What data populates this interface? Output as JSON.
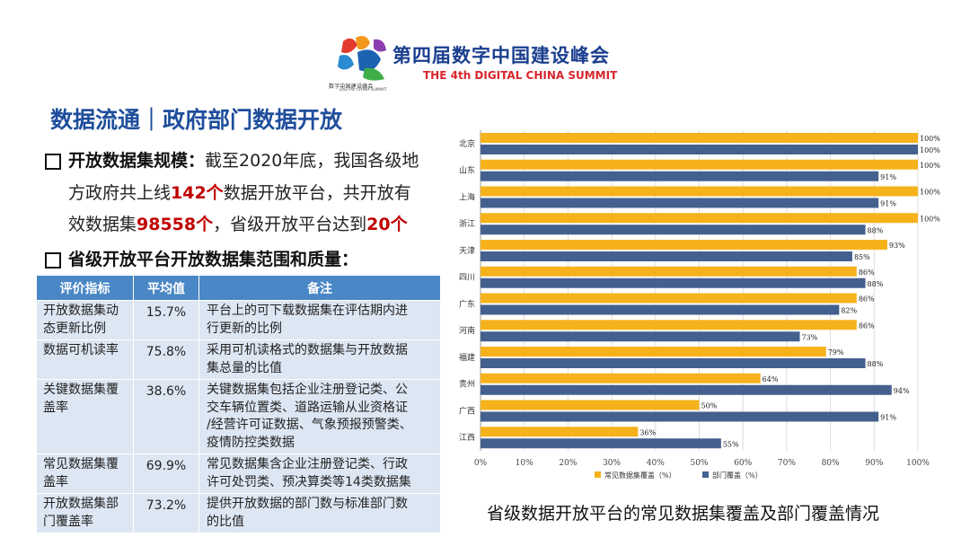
{
  "header": {
    "logo_char": "数",
    "logo_sub_cn": "数字中国建设峰会",
    "logo_sub_en": "DIGITAL CHINA SUMMIT",
    "summit_cn": "第四届数字中国建设峰会",
    "summit_en": "THE 4th DIGITAL CHINA SUMMIT"
  },
  "title": "数据流通｜政府部门数据开放",
  "para1": {
    "label": "开放数据集规模：",
    "t1": "截至2020年底，我国各级地",
    "t2": "方政府共上线",
    "h1": "142个",
    "t3": "数据开放平台，共开放有",
    "t4": "效数据集",
    "h2": "98558个",
    "t5": "，省级开放平台达到",
    "h3": "20个"
  },
  "heading2": "省级开放平台开放数据集范围和质量：",
  "table": {
    "headers": [
      "评价指标",
      "平均值",
      "备注"
    ],
    "rows": [
      {
        "name1": "开放数据集动",
        "name2": "态更新比例",
        "value": "15.7%",
        "note1": "平台上的可下载数据集在评估期内进",
        "note2": "行更新的比例"
      },
      {
        "name1": "数据可机读率",
        "name2": "",
        "value": "75.8%",
        "note1": "采用可机读格式的数据集与开放数据",
        "note2": "集总量的比值"
      },
      {
        "name1": "关键数据集覆",
        "name2": "盖率",
        "value": "38.6%",
        "note1": "关键数据集包括企业注册登记类、公",
        "note2": "交车辆位置类、道路运输从业资格证",
        "note3": "/经营许可证数据、气象预报预警类、",
        "note4": "疫情防控类数据"
      },
      {
        "name1": "常见数据集覆",
        "name2": "盖率",
        "value": "69.9%",
        "note1": "常见数据集含企业注册登记类、行政",
        "note2": "许可处罚类、预决算类等14类数据集"
      },
      {
        "name1": "开放数据集部",
        "name2": "门覆盖率",
        "value": "73.2%",
        "note1": "提供开放数据的部门数与标准部门数",
        "note2": "的比值"
      }
    ]
  },
  "chart_caption": "省级数据开放平台的常见数据集覆盖及部门覆盖情况",
  "chart_data": {
    "type": "bar",
    "orientation": "horizontal",
    "categories": [
      "北京",
      "山东",
      "上海",
      "浙江",
      "天津",
      "四川",
      "广东",
      "河南",
      "福建",
      "贵州",
      "广西",
      "江西"
    ],
    "series": [
      {
        "name": "常见数据集覆盖（%）",
        "color": "#f5b21b",
        "values": [
          100,
          100,
          100,
          100,
          93,
          86,
          86,
          86,
          79,
          64,
          50,
          36
        ]
      },
      {
        "name": "部门覆盖（%）",
        "color": "#44608e",
        "values": [
          100,
          91,
          91,
          88,
          85,
          88,
          82,
          73,
          88,
          94,
          91,
          55
        ]
      }
    ],
    "xlim": [
      0,
      100
    ],
    "xticks": [
      "0%",
      "10%",
      "20%",
      "30%",
      "40%",
      "50%",
      "60%",
      "70%",
      "80%",
      "90%",
      "100%"
    ],
    "value_suffix": "%",
    "legend_position": "bottom"
  }
}
